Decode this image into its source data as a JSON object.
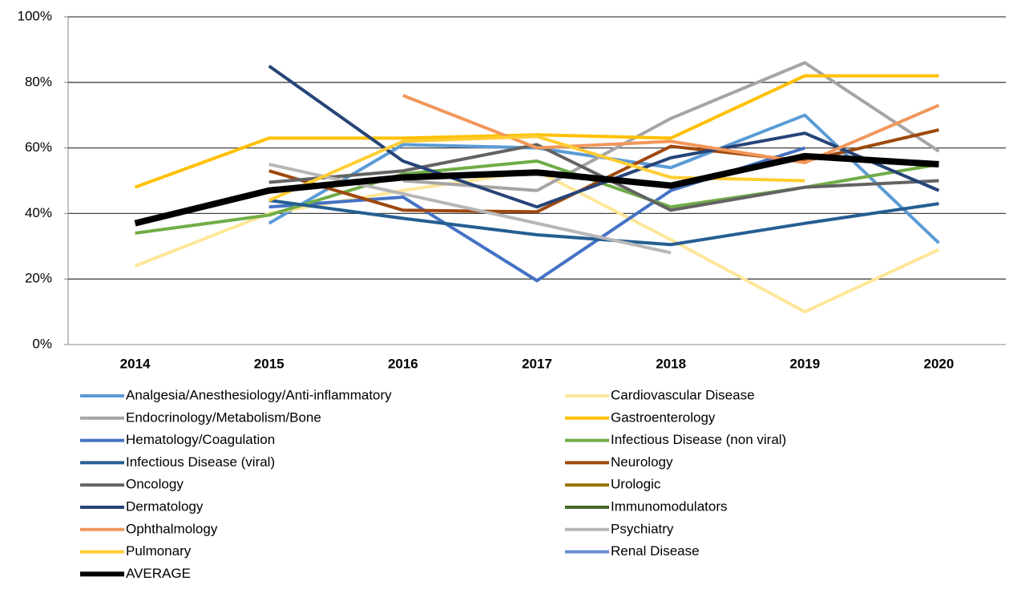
{
  "chart_data": {
    "type": "line",
    "categories": [
      "2014",
      "2015",
      "2016",
      "2017",
      "2018",
      "2019",
      "2020"
    ],
    "ylim": [
      0,
      100
    ],
    "yticks": [
      {
        "value": 0,
        "label": "0%"
      },
      {
        "value": 20,
        "label": "20%"
      },
      {
        "value": 40,
        "label": "40%"
      },
      {
        "value": 60,
        "label": "60%"
      },
      {
        "value": 80,
        "label": "80%"
      },
      {
        "value": 100,
        "label": "100%"
      }
    ],
    "grid": true,
    "series": [
      {
        "name": "Analgesia/Anesthesiology/Anti-inflammatory",
        "color": "#5b9bd5",
        "values": [
          null,
          37,
          61,
          60,
          54,
          70,
          31
        ]
      },
      {
        "name": "Cardiovascular Disease",
        "color": "#ffe699",
        "values": [
          24,
          40,
          47,
          53,
          32,
          10,
          29
        ]
      },
      {
        "name": "Endocrinology/Metabolism/Bone",
        "color": "#a5a5a5",
        "values": [
          null,
          null,
          50,
          47,
          69,
          86,
          59
        ]
      },
      {
        "name": "Gastroenterology",
        "color": "#ffc000",
        "values": [
          48,
          63,
          63,
          64,
          63,
          82,
          82
        ]
      },
      {
        "name": "Hematology/Coagulation",
        "color": "#4472c4",
        "values": [
          null,
          42,
          45,
          19.5,
          47,
          60,
          null
        ]
      },
      {
        "name": "Infectious Disease (non viral)",
        "color": "#70ad47",
        "values": [
          34,
          39.5,
          52,
          56,
          42,
          48,
          55
        ]
      },
      {
        "name": "Infectious Disease (viral)",
        "color": "#255e91",
        "values": [
          null,
          44,
          38.5,
          33.5,
          30.5,
          37,
          43
        ]
      },
      {
        "name": "Neurology",
        "color": "#9e480e",
        "values": [
          null,
          53,
          41,
          40.5,
          60.5,
          56,
          65.5
        ]
      },
      {
        "name": "Oncology",
        "color": "#636363",
        "values": [
          null,
          49.5,
          53,
          61,
          41,
          48,
          50
        ]
      },
      {
        "name": "Urologic",
        "color": "#997300",
        "values": [
          null,
          null,
          null,
          null,
          null,
          null,
          null
        ]
      },
      {
        "name": "Dermatology",
        "color": "#264478",
        "values": [
          null,
          85,
          56,
          42,
          57,
          64.5,
          47
        ]
      },
      {
        "name": "Immunomodulators",
        "color": "#43682b",
        "values": [
          null,
          null,
          null,
          null,
          null,
          null,
          null
        ]
      },
      {
        "name": "Ophthalmology",
        "color": "#f1975a",
        "values": [
          null,
          null,
          76,
          60,
          62,
          55.5,
          73
        ]
      },
      {
        "name": "Psychiatry",
        "color": "#b7b7b7",
        "values": [
          null,
          55,
          46,
          37,
          28,
          null,
          null
        ]
      },
      {
        "name": "Pulmonary",
        "color": "#ffcd33",
        "values": [
          null,
          44,
          62,
          63.5,
          51,
          50,
          null
        ]
      },
      {
        "name": "Renal Disease",
        "color": "#698ed0",
        "values": [
          null,
          null,
          null,
          null,
          null,
          null,
          null
        ]
      },
      {
        "name": "AVERAGE",
        "color": "#000000",
        "values": [
          37,
          47,
          51,
          52.5,
          48.5,
          57.5,
          55
        ]
      }
    ]
  }
}
